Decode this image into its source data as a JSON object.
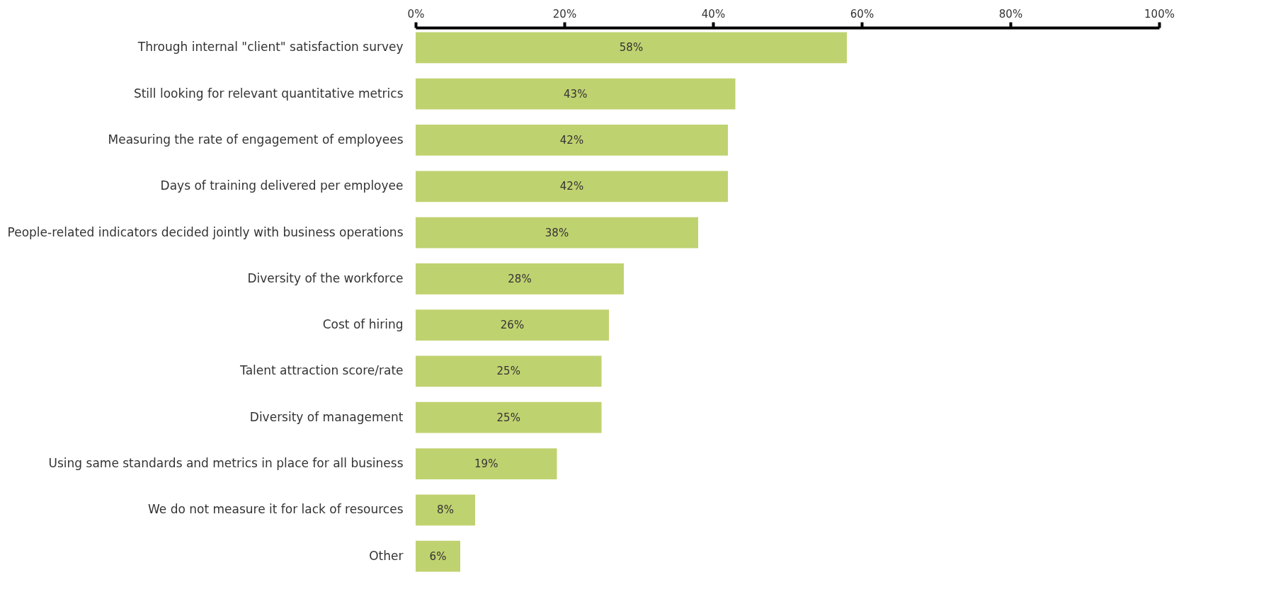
{
  "chart_data": {
    "type": "bar",
    "orientation": "horizontal",
    "categories": [
      "Through internal \"client\" satisfaction survey",
      "Still looking for relevant quantitative metrics",
      "Measuring the rate of engagement of employees",
      "Days of training delivered per employee",
      "People-related indicators decided jointly with business operations",
      "Diversity of the workforce",
      "Cost of hiring",
      "Talent attraction score/rate",
      "Diversity of management",
      "Using same standards and metrics in place  for all business",
      "We do not measure it for lack of resources",
      "Other"
    ],
    "values": [
      58,
      43,
      42,
      42,
      38,
      28,
      26,
      25,
      25,
      19,
      8,
      6
    ],
    "value_labels": [
      "58%",
      "43%",
      "42%",
      "42%",
      "38%",
      "28%",
      "26%",
      "25%",
      "25%",
      "19%",
      "8%",
      "6%"
    ],
    "color": "#bfd270",
    "xlim": [
      0,
      100
    ],
    "xticks": [
      {
        "value": 0,
        "label": "0%"
      },
      {
        "value": 20,
        "label": "20%"
      },
      {
        "value": 40,
        "label": "40%"
      },
      {
        "value": 60,
        "label": "60%"
      },
      {
        "value": 80,
        "label": "80%"
      },
      {
        "value": 100,
        "label": "100%"
      }
    ],
    "grid": false
  }
}
